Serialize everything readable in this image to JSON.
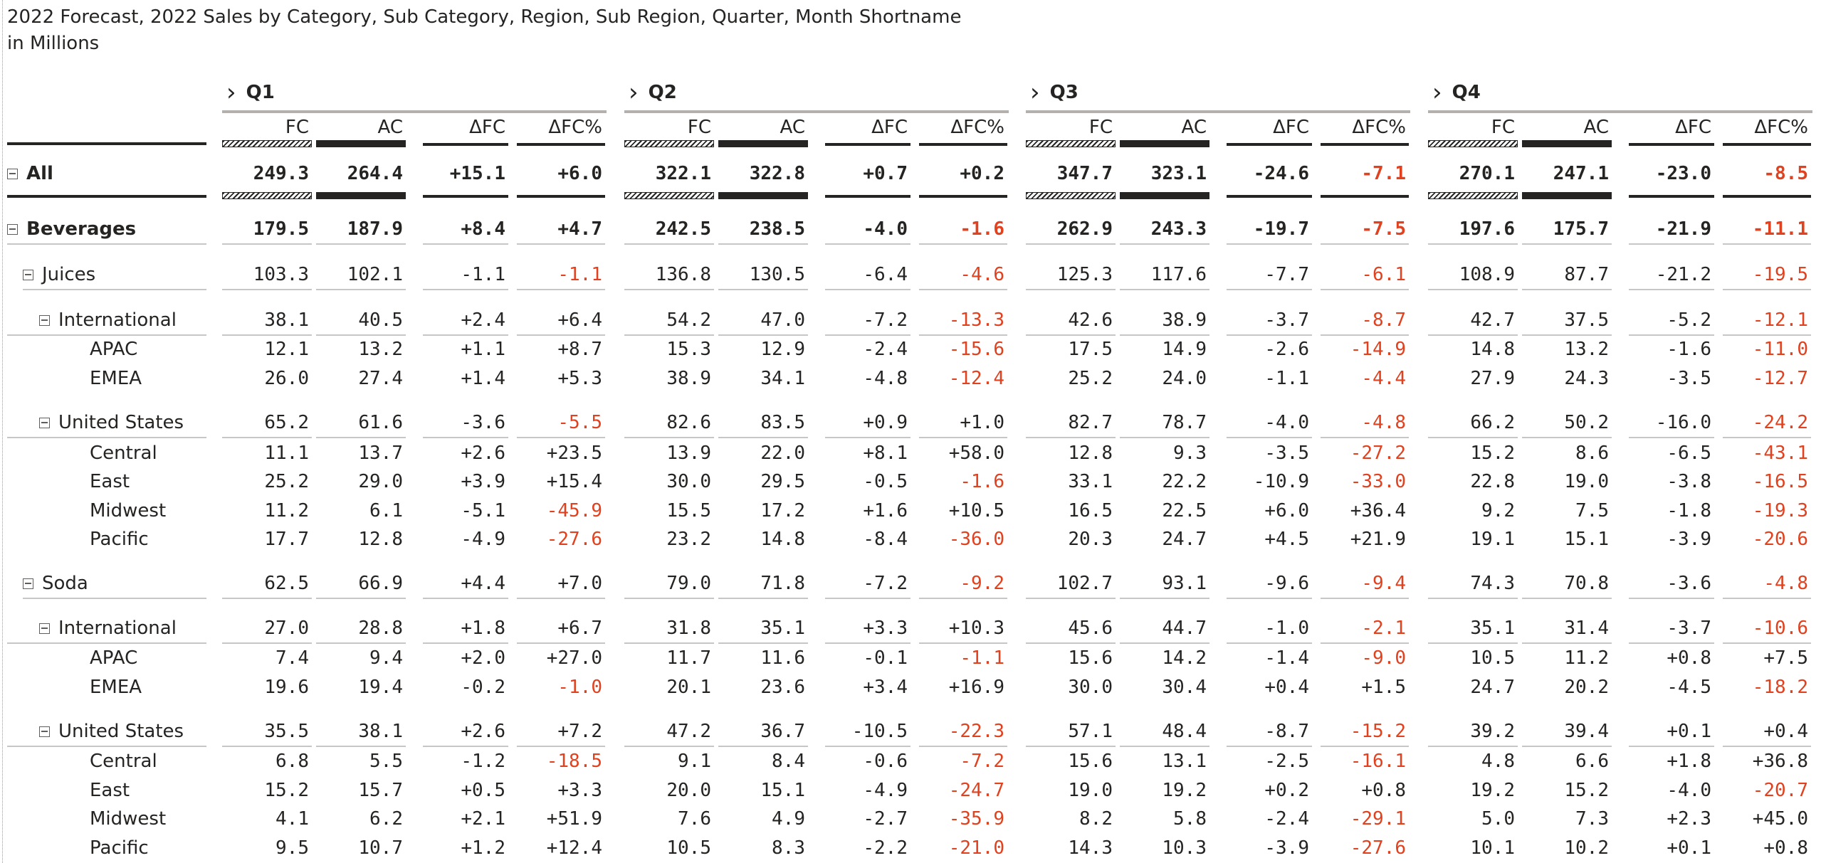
{
  "title": {
    "line1": "2022 Forecast, 2022 Sales by Category, Sub Category, Region, Sub Region, Quarter, Month Shortname",
    "line2": "in Millions"
  },
  "icons": {
    "expand": "chevron-right-icon",
    "collapse": "minus-square-icon"
  },
  "colors": {
    "negative": "#e0411f",
    "text": "#252423",
    "rule": "#c8c6c4"
  },
  "quarters": [
    "Q1",
    "Q2",
    "Q3",
    "Q4"
  ],
  "columns": [
    "FC",
    "AC",
    "ΔFC",
    "ΔFC%"
  ],
  "rows": [
    {
      "label": "All",
      "level": 0,
      "toggle": true,
      "bold": true,
      "total": true,
      "values": [
        [
          "249.3",
          "264.4",
          "+15.1",
          "+6.0"
        ],
        [
          "322.1",
          "322.8",
          "+0.7",
          "+0.2"
        ],
        [
          "347.7",
          "323.1",
          "-24.6",
          "-7.1"
        ],
        [
          "270.1",
          "247.1",
          "-23.0",
          "-8.5"
        ]
      ]
    },
    {
      "label": "Beverages",
      "level": 0,
      "toggle": true,
      "bold": true,
      "values": [
        [
          "179.5",
          "187.9",
          "+8.4",
          "+4.7"
        ],
        [
          "242.5",
          "238.5",
          "-4.0",
          "-1.6"
        ],
        [
          "262.9",
          "243.3",
          "-19.7",
          "-7.5"
        ],
        [
          "197.6",
          "175.7",
          "-21.9",
          "-11.1"
        ]
      ]
    },
    {
      "label": "Juices",
      "level": 1,
      "toggle": true,
      "values": [
        [
          "103.3",
          "102.1",
          "-1.1",
          "-1.1"
        ],
        [
          "136.8",
          "130.5",
          "-6.4",
          "-4.6"
        ],
        [
          "125.3",
          "117.6",
          "-7.7",
          "-6.1"
        ],
        [
          "108.9",
          "87.7",
          "-21.2",
          "-19.5"
        ]
      ]
    },
    {
      "label": "International",
      "level": 2,
      "toggle": true,
      "values": [
        [
          "38.1",
          "40.5",
          "+2.4",
          "+6.4"
        ],
        [
          "54.2",
          "47.0",
          "-7.2",
          "-13.3"
        ],
        [
          "42.6",
          "38.9",
          "-3.7",
          "-8.7"
        ],
        [
          "42.7",
          "37.5",
          "-5.2",
          "-12.1"
        ]
      ]
    },
    {
      "label": "APAC",
      "level": 3,
      "values": [
        [
          "12.1",
          "13.2",
          "+1.1",
          "+8.7"
        ],
        [
          "15.3",
          "12.9",
          "-2.4",
          "-15.6"
        ],
        [
          "17.5",
          "14.9",
          "-2.6",
          "-14.9"
        ],
        [
          "14.8",
          "13.2",
          "-1.6",
          "-11.0"
        ]
      ]
    },
    {
      "label": "EMEA",
      "level": 3,
      "values": [
        [
          "26.0",
          "27.4",
          "+1.4",
          "+5.3"
        ],
        [
          "38.9",
          "34.1",
          "-4.8",
          "-12.4"
        ],
        [
          "25.2",
          "24.0",
          "-1.1",
          "-4.4"
        ],
        [
          "27.9",
          "24.3",
          "-3.5",
          "-12.7"
        ]
      ]
    },
    {
      "label": "United States",
      "level": 2,
      "toggle": true,
      "values": [
        [
          "65.2",
          "61.6",
          "-3.6",
          "-5.5"
        ],
        [
          "82.6",
          "83.5",
          "+0.9",
          "+1.0"
        ],
        [
          "82.7",
          "78.7",
          "-4.0",
          "-4.8"
        ],
        [
          "66.2",
          "50.2",
          "-16.0",
          "-24.2"
        ]
      ]
    },
    {
      "label": "Central",
      "level": 3,
      "values": [
        [
          "11.1",
          "13.7",
          "+2.6",
          "+23.5"
        ],
        [
          "13.9",
          "22.0",
          "+8.1",
          "+58.0"
        ],
        [
          "12.8",
          "9.3",
          "-3.5",
          "-27.2"
        ],
        [
          "15.2",
          "8.6",
          "-6.5",
          "-43.1"
        ]
      ]
    },
    {
      "label": "East",
      "level": 3,
      "values": [
        [
          "25.2",
          "29.0",
          "+3.9",
          "+15.4"
        ],
        [
          "30.0",
          "29.5",
          "-0.5",
          "-1.6"
        ],
        [
          "33.1",
          "22.2",
          "-10.9",
          "-33.0"
        ],
        [
          "22.8",
          "19.0",
          "-3.8",
          "-16.5"
        ]
      ]
    },
    {
      "label": "Midwest",
      "level": 3,
      "values": [
        [
          "11.2",
          "6.1",
          "-5.1",
          "-45.9"
        ],
        [
          "15.5",
          "17.2",
          "+1.6",
          "+10.5"
        ],
        [
          "16.5",
          "22.5",
          "+6.0",
          "+36.4"
        ],
        [
          "9.2",
          "7.5",
          "-1.8",
          "-19.3"
        ]
      ]
    },
    {
      "label": "Pacific",
      "level": 3,
      "values": [
        [
          "17.7",
          "12.8",
          "-4.9",
          "-27.6"
        ],
        [
          "23.2",
          "14.8",
          "-8.4",
          "-36.0"
        ],
        [
          "20.3",
          "24.7",
          "+4.5",
          "+21.9"
        ],
        [
          "19.1",
          "15.1",
          "-3.9",
          "-20.6"
        ]
      ]
    },
    {
      "label": "Soda",
      "level": 1,
      "toggle": true,
      "values": [
        [
          "62.5",
          "66.9",
          "+4.4",
          "+7.0"
        ],
        [
          "79.0",
          "71.8",
          "-7.2",
          "-9.2"
        ],
        [
          "102.7",
          "93.1",
          "-9.6",
          "-9.4"
        ],
        [
          "74.3",
          "70.8",
          "-3.6",
          "-4.8"
        ]
      ]
    },
    {
      "label": "International",
      "level": 2,
      "toggle": true,
      "values": [
        [
          "27.0",
          "28.8",
          "+1.8",
          "+6.7"
        ],
        [
          "31.8",
          "35.1",
          "+3.3",
          "+10.3"
        ],
        [
          "45.6",
          "44.7",
          "-1.0",
          "-2.1"
        ],
        [
          "35.1",
          "31.4",
          "-3.7",
          "-10.6"
        ]
      ]
    },
    {
      "label": "APAC",
      "level": 3,
      "values": [
        [
          "7.4",
          "9.4",
          "+2.0",
          "+27.0"
        ],
        [
          "11.7",
          "11.6",
          "-0.1",
          "-1.1"
        ],
        [
          "15.6",
          "14.2",
          "-1.4",
          "-9.0"
        ],
        [
          "10.5",
          "11.2",
          "+0.8",
          "+7.5"
        ]
      ]
    },
    {
      "label": "EMEA",
      "level": 3,
      "values": [
        [
          "19.6",
          "19.4",
          "-0.2",
          "-1.0"
        ],
        [
          "20.1",
          "23.6",
          "+3.4",
          "+16.9"
        ],
        [
          "30.0",
          "30.4",
          "+0.4",
          "+1.5"
        ],
        [
          "24.7",
          "20.2",
          "-4.5",
          "-18.2"
        ]
      ]
    },
    {
      "label": "United States",
      "level": 2,
      "toggle": true,
      "values": [
        [
          "35.5",
          "38.1",
          "+2.6",
          "+7.2"
        ],
        [
          "47.2",
          "36.7",
          "-10.5",
          "-22.3"
        ],
        [
          "57.1",
          "48.4",
          "-8.7",
          "-15.2"
        ],
        [
          "39.2",
          "39.4",
          "+0.1",
          "+0.4"
        ]
      ]
    },
    {
      "label": "Central",
      "level": 3,
      "values": [
        [
          "6.8",
          "5.5",
          "-1.2",
          "-18.5"
        ],
        [
          "9.1",
          "8.4",
          "-0.6",
          "-7.2"
        ],
        [
          "15.6",
          "13.1",
          "-2.5",
          "-16.1"
        ],
        [
          "4.8",
          "6.6",
          "+1.8",
          "+36.8"
        ]
      ]
    },
    {
      "label": "East",
      "level": 3,
      "values": [
        [
          "15.2",
          "15.7",
          "+0.5",
          "+3.3"
        ],
        [
          "20.0",
          "15.1",
          "-4.9",
          "-24.7"
        ],
        [
          "19.0",
          "19.2",
          "+0.2",
          "+0.8"
        ],
        [
          "19.2",
          "15.2",
          "-4.0",
          "-20.7"
        ]
      ]
    },
    {
      "label": "Midwest",
      "level": 3,
      "values": [
        [
          "4.1",
          "6.2",
          "+2.1",
          "+51.9"
        ],
        [
          "7.6",
          "4.9",
          "-2.7",
          "-35.9"
        ],
        [
          "8.2",
          "5.8",
          "-2.4",
          "-29.1"
        ],
        [
          "5.0",
          "7.3",
          "+2.3",
          "+45.0"
        ]
      ]
    },
    {
      "label": "Pacific",
      "level": 3,
      "values": [
        [
          "9.5",
          "10.7",
          "+1.2",
          "+12.4"
        ],
        [
          "10.5",
          "8.3",
          "-2.2",
          "-21.0"
        ],
        [
          "14.3",
          "10.3",
          "-3.9",
          "-27.6"
        ],
        [
          "10.1",
          "10.2",
          "+0.1",
          "+0.8"
        ]
      ]
    }
  ]
}
